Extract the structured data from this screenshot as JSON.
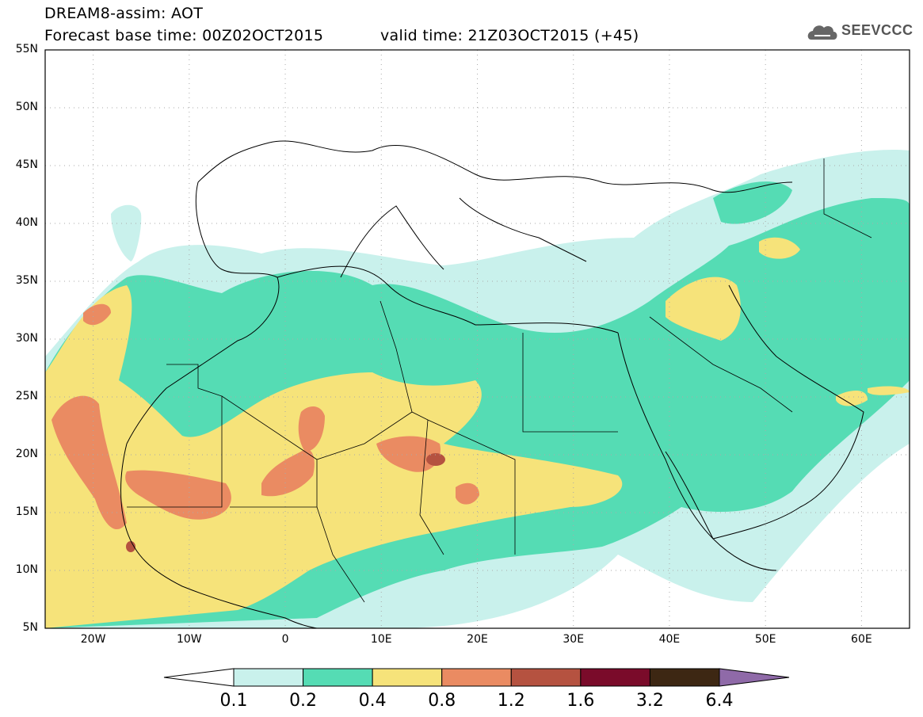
{
  "header": {
    "title": "DREAM8-assim: AOT",
    "base_time": "Forecast base time: 00Z02OCT2015",
    "valid_time": "valid time: 21Z03OCT2015 (+45)"
  },
  "logo": {
    "text": "SEEVCCC",
    "icon": "cloud-logo-icon",
    "color": "#555555"
  },
  "axes": {
    "lat_labels": [
      "55N",
      "50N",
      "45N",
      "40N",
      "35N",
      "30N",
      "25N",
      "20N",
      "15N",
      "10N",
      "5N"
    ],
    "lat_values": [
      55,
      50,
      45,
      40,
      35,
      30,
      25,
      20,
      15,
      10,
      5
    ],
    "lon_labels": [
      "20W",
      "10W",
      "0",
      "10E",
      "20E",
      "30E",
      "40E",
      "50E",
      "60E"
    ],
    "lon_values": [
      -20,
      -10,
      0,
      10,
      20,
      30,
      40,
      50,
      60
    ],
    "lon_range": [
      -25,
      65
    ],
    "lat_range": [
      5,
      55
    ],
    "grid": "dotted"
  },
  "colorbar": {
    "ticks": [
      "0.1",
      "0.2",
      "0.4",
      "0.8",
      "1.2",
      "1.6",
      "3.2",
      "6.4"
    ],
    "colors": [
      "#c9f1ec",
      "#55dcb4",
      "#f6e37a",
      "#ea8b62",
      "#b55240",
      "#7a0b2a",
      "#3d2713",
      "#8f6aa8"
    ],
    "under_color": "#ffffff"
  }
}
